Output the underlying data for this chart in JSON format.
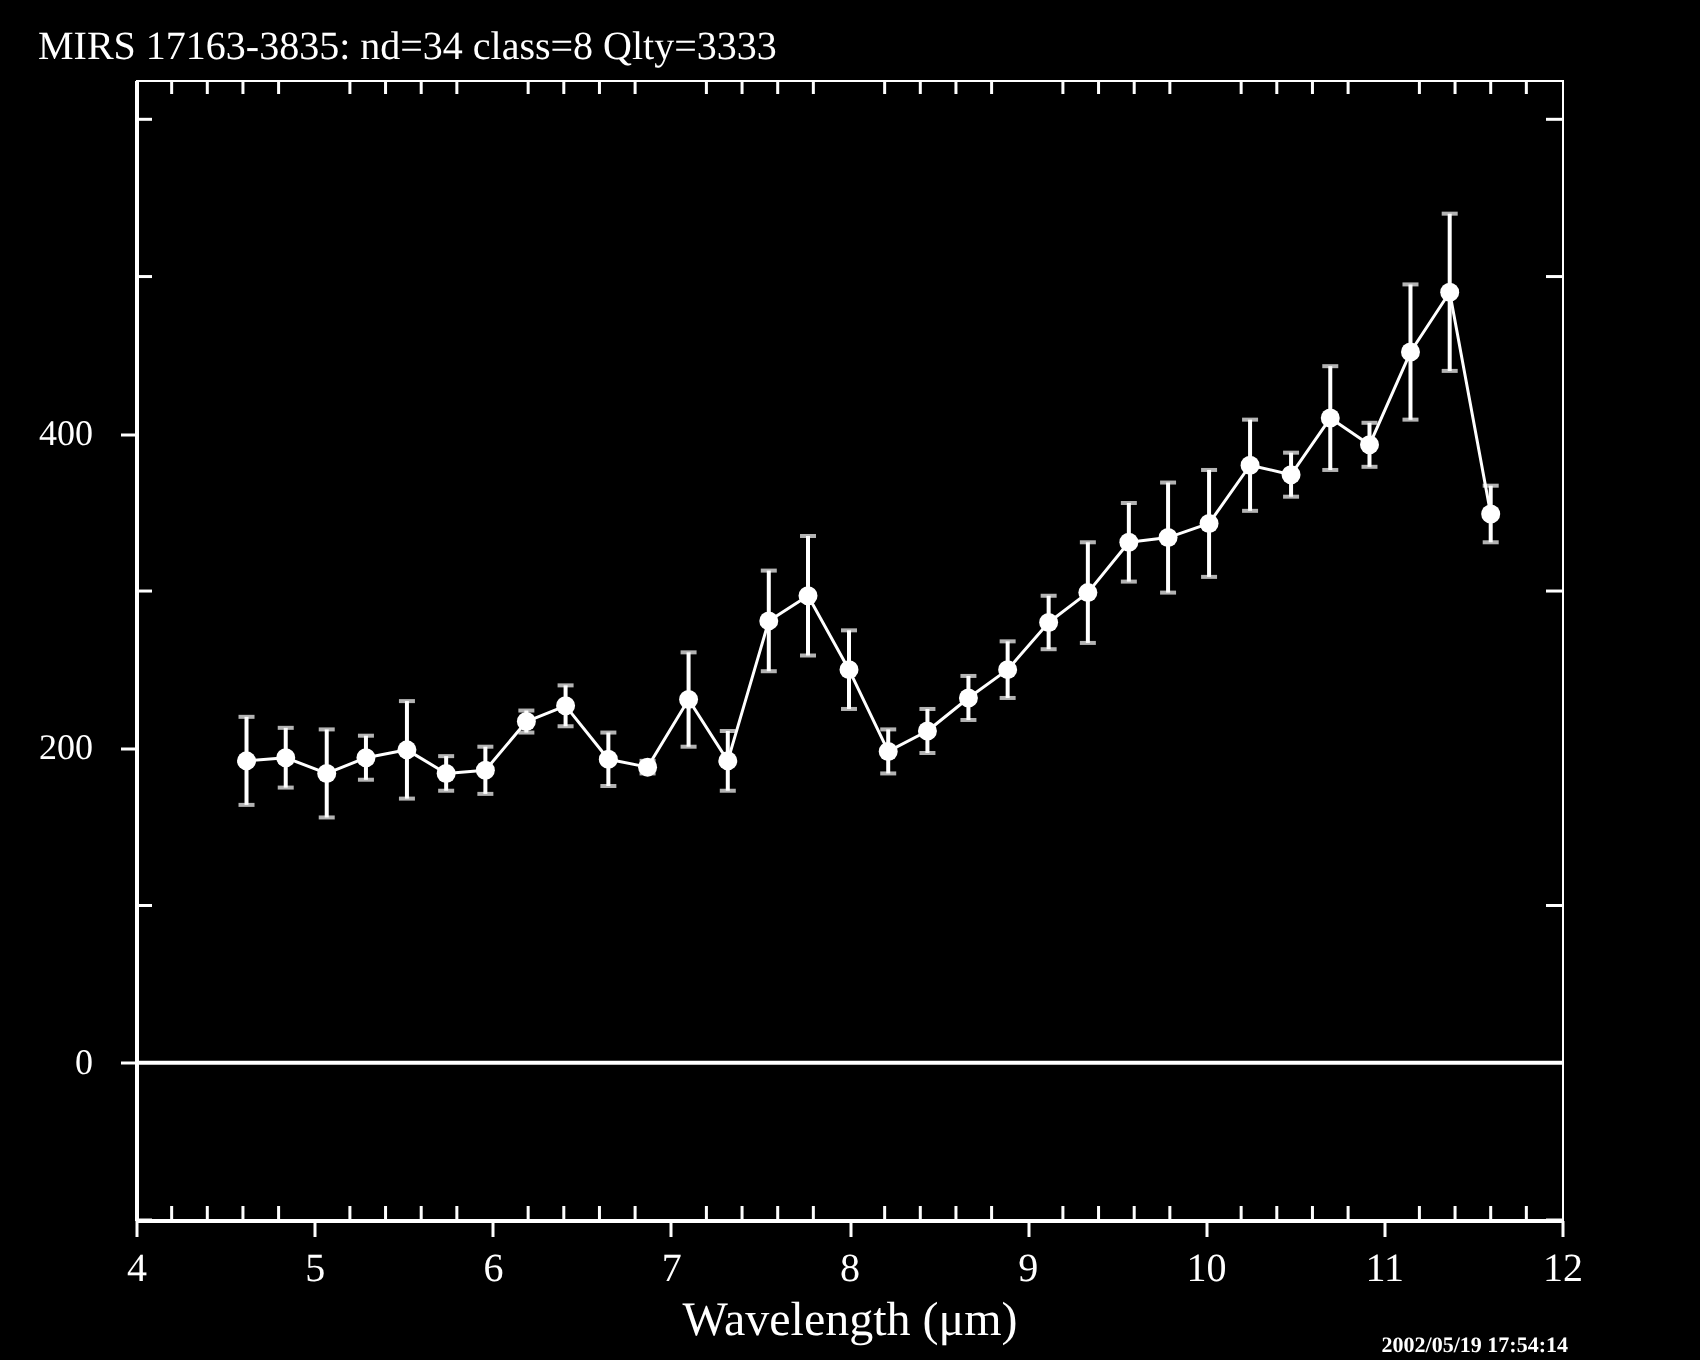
{
  "chart_data": {
    "type": "line",
    "title": "MIRS 17163-3835:    nd=34    class=8    Qlty=3333",
    "xlabel": "Wavelength (μm)",
    "x": [
      4.62,
      4.84,
      5.07,
      5.29,
      5.52,
      5.74,
      5.96,
      6.19,
      6.41,
      6.65,
      6.87,
      7.1,
      7.32,
      7.55,
      7.77,
      8.0,
      8.22,
      8.44,
      8.67,
      8.89,
      9.12,
      9.34,
      9.57,
      9.79,
      10.02,
      10.25,
      10.48,
      10.7,
      10.92,
      11.15,
      11.37,
      11.6
    ],
    "series": [
      {
        "color": "#ffffff",
        "values": [
          192,
          194,
          184,
          194,
          199,
          184,
          186,
          217,
          227,
          193,
          188,
          231,
          192,
          281,
          297,
          250,
          198,
          211,
          232,
          250,
          280,
          299,
          331,
          334,
          343,
          380,
          374,
          410,
          393,
          452,
          490,
          349
        ],
        "errors": [
          28,
          19,
          28,
          14,
          31,
          11,
          15,
          7,
          13,
          17,
          4,
          30,
          19,
          32,
          38,
          25,
          14,
          14,
          14,
          18,
          17,
          32,
          25,
          35,
          34,
          29,
          14,
          33,
          14,
          43,
          50,
          18
        ]
      }
    ],
    "xlim": [
      4,
      12
    ],
    "ylim": [
      -100,
      625
    ],
    "xticks": [
      4,
      {
        "value": 4.2,
        "label": null
      },
      {
        "value": 4.4,
        "label": null
      },
      {
        "value": 4.6,
        "label": null
      },
      {
        "value": 4.8,
        "label": null
      },
      5,
      {
        "value": 5.2,
        "label": null
      },
      {
        "value": 5.4,
        "label": null
      },
      {
        "value": 5.6,
        "label": null
      },
      {
        "value": 5.8,
        "label": null
      },
      6,
      {
        "value": 6.2,
        "label": null
      },
      {
        "value": 6.4,
        "label": null
      },
      {
        "value": 6.6,
        "label": null
      },
      {
        "value": 6.8,
        "label": null
      },
      7,
      {
        "value": 7.2,
        "label": null
      },
      {
        "value": 7.4,
        "label": null
      },
      {
        "value": 7.6,
        "label": null
      },
      {
        "value": 7.8,
        "label": null
      },
      8,
      {
        "value": 8.2,
        "label": null
      },
      {
        "value": 8.4,
        "label": null
      },
      {
        "value": 8.6,
        "label": null
      },
      {
        "value": 8.8,
        "label": null
      },
      9,
      {
        "value": 9.2,
        "label": null
      },
      {
        "value": 9.4,
        "label": null
      },
      {
        "value": 9.6,
        "label": null
      },
      {
        "value": 9.8,
        "label": null
      },
      10,
      {
        "value": 10.2,
        "label": null
      },
      {
        "value": 10.4,
        "label": null
      },
      {
        "value": 10.6,
        "label": null
      },
      {
        "value": 10.8,
        "label": null
      },
      11,
      {
        "value": 11.2,
        "label": null
      },
      {
        "value": 11.4,
        "label": null
      },
      {
        "value": 11.6,
        "label": null
      },
      {
        "value": 11.8,
        "label": null
      },
      12
    ],
    "yticks": [
      {
        "value": -100,
        "label": null
      },
      0,
      {
        "value": 100,
        "label": null
      },
      200,
      {
        "value": 300,
        "label": null
      },
      400,
      {
        "value": 500,
        "label": null
      },
      {
        "value": 600,
        "label": null
      }
    ],
    "ref_lines": [
      {
        "axis": "y",
        "value": 0,
        "color": "#ffffff"
      }
    ],
    "annotations": [
      "2002/05/19 17:54:14"
    ],
    "marker": "circle",
    "line_style": "solid",
    "grid": false
  }
}
